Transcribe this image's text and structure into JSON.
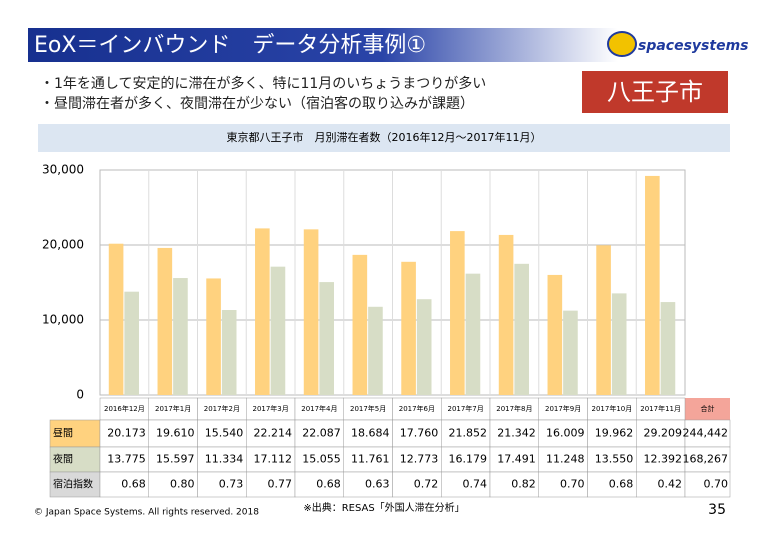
{
  "header": {
    "title": "EoX＝インバウンド　データ分析事例①",
    "logo": "spacesystems",
    "badge": "八王子市",
    "bullets": [
      "・1年を通して安定的に滞在が多く、特に11月のいちょうまつりが多い",
      "・昼間滞在者が多く、夜間滞在が少ない（宿泊客の取り込みが課題）"
    ]
  },
  "chart_data": {
    "type": "bar",
    "title": "東京都八王子市　月別滞在者数（2016年12月～2017年11月）",
    "categories": [
      "2016年12月",
      "2017年1月",
      "2017年2月",
      "2017年3月",
      "2017年4月",
      "2017年5月",
      "2017年6月",
      "2017年7月",
      "2017年8月",
      "2017年9月",
      "2017年10月",
      "2017年11月"
    ],
    "series": [
      {
        "name": "昼間",
        "color": "#ffd27f",
        "values": [
          20173,
          19610,
          15540,
          22214,
          22087,
          18684,
          17760,
          21852,
          21342,
          16009,
          19962,
          29209
        ],
        "value_labels": [
          "20.173",
          "19.610",
          "15.540",
          "22.214",
          "22.087",
          "18.684",
          "17.760",
          "21.852",
          "21.342",
          "16.009",
          "19.962",
          "29.209"
        ],
        "total": "244,442"
      },
      {
        "name": "夜間",
        "color": "#d7ddc6",
        "values": [
          13775,
          15597,
          11334,
          17112,
          15055,
          11761,
          12773,
          16179,
          17491,
          11248,
          13550,
          12392
        ],
        "value_labels": [
          "13.775",
          "15.597",
          "11.334",
          "17.112",
          "15.055",
          "11.761",
          "12.773",
          "16.179",
          "17.491",
          "11.248",
          "13.550",
          "12.392"
        ],
        "total": "168,267"
      }
    ],
    "total_header": "合計",
    "index_row": {
      "name": "宿泊指数",
      "values": [
        "0.68",
        "0.80",
        "0.73",
        "0.77",
        "0.68",
        "0.63",
        "0.72",
        "0.74",
        "0.82",
        "0.70",
        "0.68",
        "0.42"
      ],
      "total": "0.70"
    },
    "ylim": [
      0,
      30000
    ],
    "yticks": [
      0,
      {
        "value": 10000,
        "label": "10,000"
      },
      {
        "value": 20000,
        "label": "20,000"
      },
      {
        "value": 30000,
        "label": "30,000"
      }
    ],
    "grid": true
  },
  "footer": {
    "copyright": "© Japan Space Systems. All rights reserved. 2018",
    "source": "※出典：RESAS「外国人滞在分析」",
    "page": "35"
  }
}
